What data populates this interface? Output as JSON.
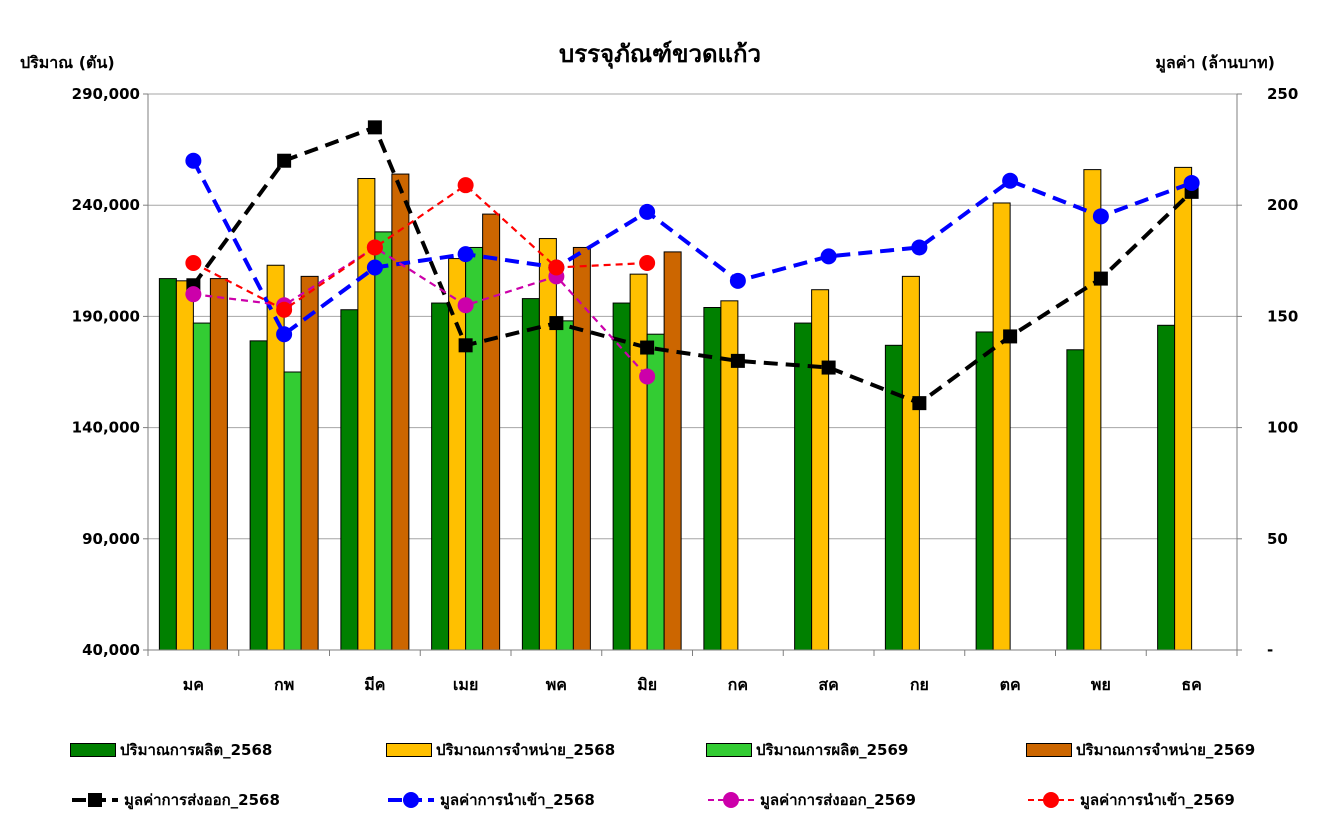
{
  "chart_data": {
    "type": "bar",
    "title": "บรรจุภัณฑ์ขวดแก้ว",
    "ylabel_left": "ปริมาณ (ตัน)",
    "ylabel_right": "มูลค่า (ล้านบาท)",
    "categories": [
      "มค",
      "กพ",
      "มีค",
      "เมย",
      "พค",
      "มิย",
      "กค",
      "สค",
      "กย",
      "ตค",
      "พย",
      "ธค"
    ],
    "ylim_left": [
      40000,
      290000
    ],
    "yticks_left": [
      "40,000",
      "90,000",
      "140,000",
      "190,000",
      "240,000",
      "290,000"
    ],
    "ylim_right": [
      0,
      250
    ],
    "yticks_right": [
      "-",
      "50",
      "100",
      "150",
      "200",
      "250"
    ],
    "grid": "horizontal",
    "legend_position": "bottom",
    "bar_series": [
      {
        "name": "ปริมาณการผลิต_2568",
        "color": "#008000",
        "values": [
          207000,
          179000,
          193000,
          196000,
          198000,
          196000,
          194000,
          187000,
          177000,
          183000,
          175000,
          186000
        ]
      },
      {
        "name": "ปริมาณการจำหน่าย_2568",
        "color": "#FFC000",
        "values": [
          206000,
          213000,
          252000,
          216000,
          225000,
          209000,
          197000,
          202000,
          208000,
          241000,
          256000,
          257000
        ]
      },
      {
        "name": "ปริมาณการผลิต_2569",
        "color": "#33CC33",
        "values": [
          187000,
          165000,
          228000,
          221000,
          188000,
          182000,
          null,
          null,
          null,
          null,
          null,
          null
        ]
      },
      {
        "name": "ปริมาณการจำหน่าย_2569",
        "color": "#CC6600",
        "values": [
          207000,
          208000,
          254000,
          236000,
          221000,
          219000,
          null,
          null,
          null,
          null,
          null,
          null
        ]
      }
    ],
    "line_series": [
      {
        "name": "มูลค่าการส่งออก_2568",
        "color": "#000000",
        "marker": "square",
        "dash": "long",
        "values": [
          164,
          220,
          235,
          137,
          147,
          136,
          130,
          127,
          111,
          141,
          167,
          206
        ]
      },
      {
        "name": "มูลค่าการนำเข้า_2568",
        "color": "#0000FF",
        "marker": "circle",
        "dash": "long",
        "values": [
          220,
          142,
          172,
          178,
          172,
          197,
          166,
          177,
          181,
          211,
          195,
          210
        ]
      },
      {
        "name": "มูลค่าการส่งออก_2569",
        "color": "#CC00AA",
        "marker": "circle",
        "dash": "short",
        "values": [
          160,
          155,
          181,
          155,
          168,
          123,
          null,
          null,
          null,
          null,
          null,
          null
        ]
      },
      {
        "name": "มูลค่าการนำเข้า_2569",
        "color": "#FF0000",
        "marker": "circle",
        "dash": "short",
        "values": [
          174,
          153,
          181,
          209,
          172,
          174,
          null,
          null,
          null,
          null,
          null,
          null
        ]
      }
    ]
  }
}
